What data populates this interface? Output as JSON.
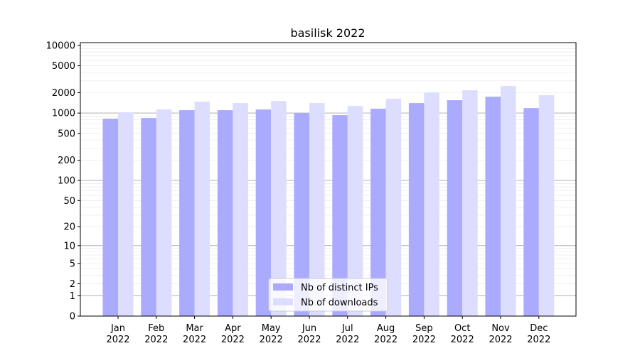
{
  "chart_data": {
    "type": "bar",
    "title": "basilisk 2022",
    "xlabel": "",
    "ylabel": "",
    "yscale": "log10(1+y)",
    "ylim": [
      0,
      11000
    ],
    "grid": true,
    "legend_position": "bottom-center",
    "categories": [
      "Jan\n2022",
      "Feb\n2022",
      "Mar\n2022",
      "Apr\n2022",
      "May\n2022",
      "Jun\n2022",
      "Jul\n2022",
      "Aug\n2022",
      "Sep\n2022",
      "Oct\n2022",
      "Nov\n2022",
      "Dec\n2022"
    ],
    "yticks": [
      0,
      1,
      2,
      5,
      10,
      20,
      50,
      100,
      200,
      500,
      1000,
      2000,
      5000,
      10000
    ],
    "series": [
      {
        "name": "Nb of distinct IPs",
        "color": "#aaaaff",
        "values": [
          826,
          846,
          1104,
          1104,
          1130,
          1000,
          932,
          1158,
          1406,
          1549,
          1746,
          1186
        ]
      },
      {
        "name": "Nb of downloads",
        "color": "#ddddff",
        "values": [
          1026,
          1130,
          1475,
          1406,
          1511,
          1406,
          1276,
          1625,
          2018,
          2172,
          2510,
          1836
        ]
      }
    ]
  }
}
